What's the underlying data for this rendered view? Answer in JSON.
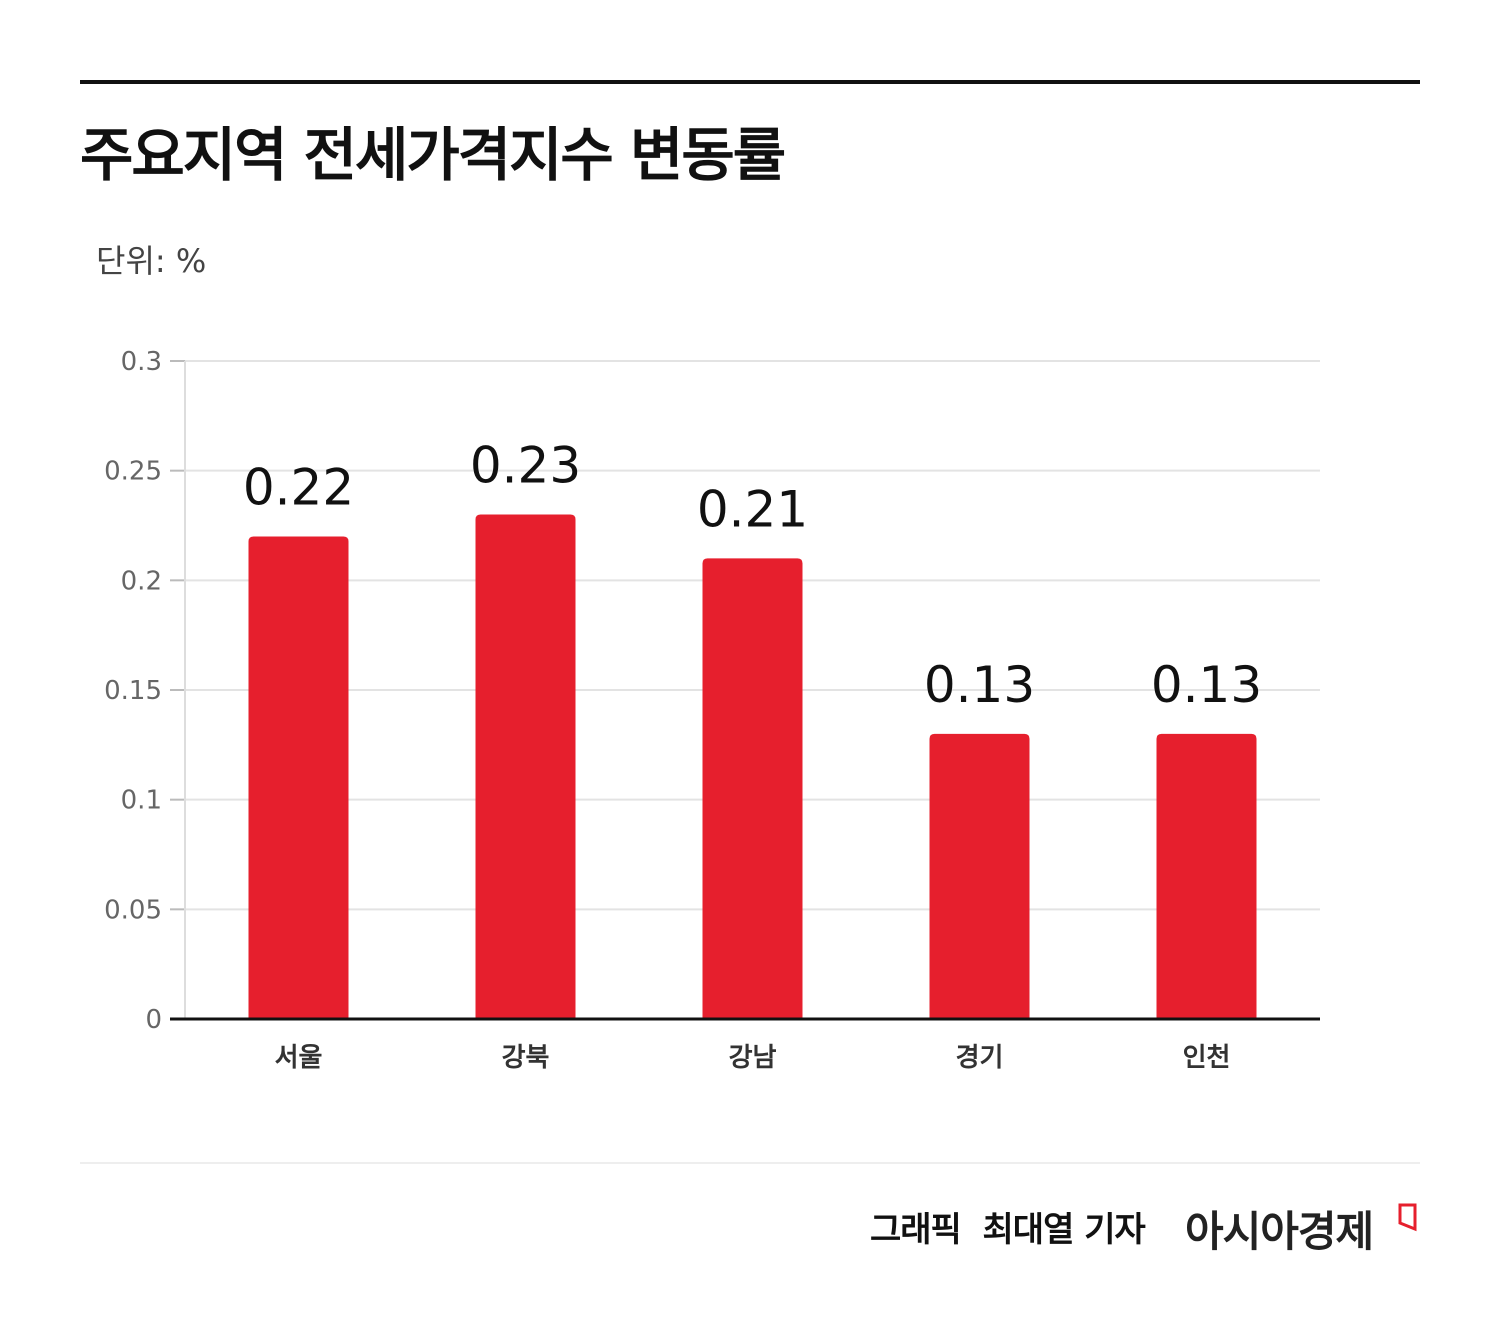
{
  "title": "주요지역 전세가격지수 변동률",
  "unit_label": "단위: %",
  "credit": "그래픽  최대열 기자",
  "logo_text": "아시아경제",
  "colors": {
    "bar": "#e61f2d",
    "grid": "#e3e3e3",
    "axis": "#111111"
  },
  "chart_data": {
    "type": "bar",
    "title": "주요지역 전세가격지수 변동률",
    "ylabel": "단위: %",
    "categories": [
      "서울",
      "강북",
      "강남",
      "경기",
      "인천"
    ],
    "values": [
      0.22,
      0.23,
      0.21,
      0.13,
      0.13
    ],
    "data_labels": [
      "0.22",
      "0.23",
      "0.21",
      "0.13",
      "0.13"
    ],
    "ylim": [
      0,
      0.3
    ],
    "yticks": [
      "0",
      "0.05",
      "0.1",
      "0.15",
      "0.2",
      "0.25",
      "0.3"
    ],
    "grid": true
  }
}
